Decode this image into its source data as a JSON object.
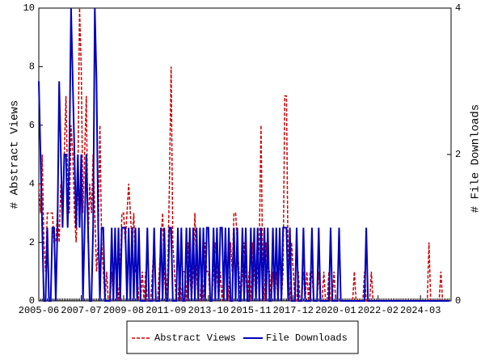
{
  "chart_data": {
    "type": "line",
    "y_label": "# Abstract Views",
    "y2_label": "# File Downloads",
    "x": [
      "2005-06",
      "2005-07",
      "2005-08",
      "2005-09",
      "2005-10",
      "2005-11",
      "2005-12",
      "2006-01",
      "2006-02",
      "2006-03",
      "2006-04",
      "2006-05",
      "2006-06",
      "2006-07",
      "2006-08",
      "2006-09",
      "2006-10",
      "2006-11",
      "2006-12",
      "2007-01",
      "2007-02",
      "2007-03",
      "2007-04",
      "2007-05",
      "2007-06",
      "2007-07",
      "2007-08",
      "2007-09",
      "2007-10",
      "2007-11",
      "2007-12",
      "2008-01",
      "2008-02",
      "2008-03",
      "2008-04",
      "2008-05",
      "2008-06",
      "2008-07",
      "2008-08",
      "2008-09",
      "2008-10",
      "2008-11",
      "2008-12",
      "2009-01",
      "2009-02",
      "2009-03",
      "2009-04",
      "2009-05",
      "2009-06",
      "2009-07",
      "2009-08",
      "2009-09",
      "2009-10",
      "2009-11",
      "2009-12",
      "2010-01",
      "2010-02",
      "2010-03",
      "2010-04",
      "2010-05",
      "2010-06",
      "2010-07",
      "2010-08",
      "2010-09",
      "2010-10",
      "2010-11",
      "2010-12",
      "2011-01",
      "2011-02",
      "2011-03",
      "2011-04",
      "2011-05",
      "2011-06",
      "2011-07",
      "2011-08",
      "2011-09",
      "2011-10",
      "2011-11",
      "2011-12",
      "2012-01",
      "2012-02",
      "2012-03",
      "2012-04",
      "2012-05",
      "2012-06",
      "2012-07",
      "2012-08",
      "2012-09",
      "2012-10",
      "2012-11",
      "2012-12",
      "2013-01",
      "2013-02",
      "2013-03",
      "2013-04",
      "2013-05",
      "2013-06",
      "2013-07",
      "2013-08",
      "2013-09",
      "2013-10",
      "2013-11",
      "2013-12",
      "2014-01",
      "2014-02",
      "2014-03",
      "2014-04",
      "2014-05",
      "2014-06",
      "2014-07",
      "2014-08",
      "2014-09",
      "2014-10",
      "2014-11",
      "2014-12",
      "2015-01",
      "2015-02",
      "2015-03",
      "2015-04",
      "2015-05",
      "2015-06",
      "2015-07",
      "2015-08",
      "2015-09",
      "2015-10",
      "2015-11",
      "2015-12",
      "2016-01",
      "2016-02",
      "2016-03",
      "2016-04",
      "2016-05",
      "2016-06",
      "2016-07",
      "2016-08",
      "2016-09",
      "2016-10",
      "2016-11",
      "2016-12",
      "2017-01",
      "2017-02",
      "2017-03",
      "2017-04",
      "2017-05",
      "2017-06",
      "2017-07",
      "2017-08",
      "2017-09",
      "2017-10",
      "2017-11",
      "2017-12",
      "2018-01",
      "2018-02",
      "2018-03",
      "2018-04",
      "2018-05",
      "2018-06",
      "2018-07",
      "2018-08",
      "2018-09",
      "2018-10",
      "2018-11",
      "2018-12",
      "2019-01",
      "2019-02",
      "2019-03",
      "2019-04",
      "2019-05",
      "2019-06",
      "2019-07",
      "2019-08",
      "2019-09",
      "2019-10",
      "2019-11",
      "2019-12",
      "2020-01",
      "2020-02",
      "2020-03",
      "2020-04",
      "2020-05",
      "2020-06",
      "2020-07",
      "2020-08",
      "2020-09",
      "2020-10",
      "2020-11",
      "2020-12",
      "2021-01",
      "2021-02",
      "2021-03",
      "2021-04",
      "2021-05",
      "2021-06",
      "2021-07",
      "2021-08",
      "2021-09",
      "2021-10",
      "2021-11",
      "2021-12",
      "2022-01",
      "2022-02",
      "2022-03",
      "2022-04",
      "2022-05",
      "2022-06",
      "2022-07",
      "2022-08",
      "2022-09",
      "2022-10",
      "2022-11",
      "2022-12",
      "2023-01",
      "2023-02",
      "2023-03",
      "2023-04",
      "2023-05",
      "2023-06",
      "2023-07",
      "2023-08",
      "2023-09",
      "2023-10",
      "2023-11",
      "2023-12",
      "2024-01",
      "2024-02",
      "2024-03",
      "2024-04",
      "2024-05",
      "2024-06",
      "2024-07",
      "2024-08",
      "2024-09",
      "2024-10",
      "2024-11",
      "2024-12",
      "2025-01",
      "2025-02",
      "2025-03",
      "2025-04",
      "2025-05",
      "2025-06",
      "2025-07",
      "2025-08"
    ],
    "xticks": [
      "2005-06",
      "2007-07",
      "2009-08",
      "2011-09",
      "2013-10",
      "2015-11",
      "2017-12",
      "2020-01",
      "2022-02",
      "2024-03"
    ],
    "ylim": [
      0,
      10
    ],
    "yticks": [
      0,
      2,
      4,
      6,
      8,
      10
    ],
    "y2lim": [
      0,
      4
    ],
    "y2ticks": [
      0,
      2,
      4
    ],
    "legend": "bottom",
    "series": [
      {
        "name": "Abstract Views",
        "color": "#cc0000",
        "dash": true,
        "values": [
          4,
          3,
          5,
          2,
          1,
          3,
          3,
          3,
          3,
          2,
          2,
          3,
          2,
          4,
          3,
          5,
          7,
          4,
          3,
          6,
          5,
          3,
          2,
          4,
          10,
          8,
          3,
          5,
          7,
          2,
          4,
          3,
          5,
          3,
          1,
          2,
          6,
          2,
          1,
          0,
          1,
          0,
          0,
          1,
          0,
          2,
          1,
          0,
          1,
          3,
          3,
          2,
          3,
          4,
          3,
          2,
          3,
          1,
          1,
          0,
          0,
          1,
          0,
          1,
          0,
          0,
          0,
          1,
          2,
          0,
          0,
          1,
          2,
          3,
          1,
          0,
          1,
          4,
          8,
          2,
          1,
          0,
          0,
          1,
          0,
          1,
          1,
          0,
          2,
          1,
          0,
          1,
          3,
          1,
          0,
          0,
          1,
          0,
          2,
          1,
          1,
          0,
          0,
          1,
          2,
          1,
          0,
          1,
          0,
          1,
          2,
          1,
          0,
          2,
          1,
          3,
          3,
          2,
          1,
          0,
          1,
          2,
          1,
          0,
          1,
          0,
          2,
          1,
          0,
          1,
          2,
          6,
          1,
          0,
          2,
          1,
          1,
          0,
          1,
          0,
          1,
          0,
          2,
          0,
          1,
          7,
          7,
          1,
          0,
          2,
          1,
          0,
          0,
          1,
          0,
          0,
          1,
          0,
          1,
          0,
          1,
          1,
          0,
          0,
          0,
          1,
          0,
          0,
          1,
          0,
          0,
          1,
          0,
          0,
          1,
          0,
          0,
          0,
          0,
          0,
          0,
          0,
          0,
          0,
          0,
          0,
          1,
          0,
          0,
          0,
          0,
          0,
          1,
          0,
          0,
          0,
          1,
          0,
          0,
          0,
          0,
          0,
          0,
          0,
          0,
          0,
          0,
          0,
          0,
          0,
          0,
          0,
          0,
          0,
          0,
          0,
          0,
          0,
          0,
          0,
          0,
          0,
          0,
          0,
          0,
          0,
          0,
          0,
          0,
          0,
          2,
          0,
          0,
          0,
          0,
          0,
          0,
          1,
          0,
          0,
          0,
          0,
          0
        ]
      },
      {
        "name": "File Downloads",
        "color": "#0000bb",
        "axis": "y2",
        "dash": false,
        "values": [
          3,
          2,
          1,
          0,
          0,
          1,
          0,
          0,
          1,
          1,
          0,
          1,
          3,
          2,
          1,
          2,
          2,
          1,
          2,
          4,
          3,
          2,
          1,
          2,
          1,
          2,
          0,
          1,
          2,
          1,
          0,
          0,
          1,
          4,
          3,
          1,
          0,
          1,
          1,
          0,
          0,
          0,
          0,
          1,
          0,
          1,
          0,
          1,
          0,
          1,
          1,
          1,
          0,
          1,
          0,
          1,
          0,
          1,
          0,
          1,
          0,
          0,
          0,
          0,
          1,
          0,
          0,
          0,
          1,
          0,
          0,
          0,
          1,
          0,
          1,
          0,
          0,
          1,
          1,
          0,
          0,
          0,
          1,
          0,
          1,
          0,
          0,
          1,
          0,
          1,
          0,
          1,
          0,
          1,
          0,
          1,
          0,
          1,
          0,
          1,
          1,
          0,
          0,
          1,
          0,
          1,
          0,
          1,
          1,
          0,
          1,
          0,
          1,
          0,
          0,
          1,
          0,
          1,
          0,
          0,
          1,
          0,
          1,
          0,
          0,
          1,
          0,
          1,
          0,
          1,
          0,
          1,
          0,
          1,
          0,
          1,
          0,
          0,
          1,
          0,
          1,
          0,
          1,
          0,
          1,
          1,
          1,
          0,
          1,
          0,
          0,
          0,
          1,
          0,
          0,
          0,
          1,
          0,
          0,
          0,
          0,
          1,
          0,
          0,
          0,
          1,
          0,
          0,
          0,
          0,
          0,
          0,
          1,
          0,
          0,
          0,
          0,
          1,
          0,
          0,
          0,
          0,
          0,
          0,
          0,
          0,
          0,
          0,
          0,
          0,
          0,
          0,
          0,
          1,
          0,
          0,
          0,
          0,
          0,
          0,
          0,
          0,
          0,
          0,
          0,
          0,
          0,
          0,
          0,
          0,
          0,
          0,
          0,
          0,
          0,
          0,
          0,
          0,
          0,
          0,
          0,
          0,
          0,
          0,
          0,
          0,
          0,
          0,
          0,
          0,
          0,
          0,
          0,
          0,
          0,
          0,
          0,
          0,
          0,
          0,
          0,
          0,
          0
        ]
      }
    ]
  }
}
